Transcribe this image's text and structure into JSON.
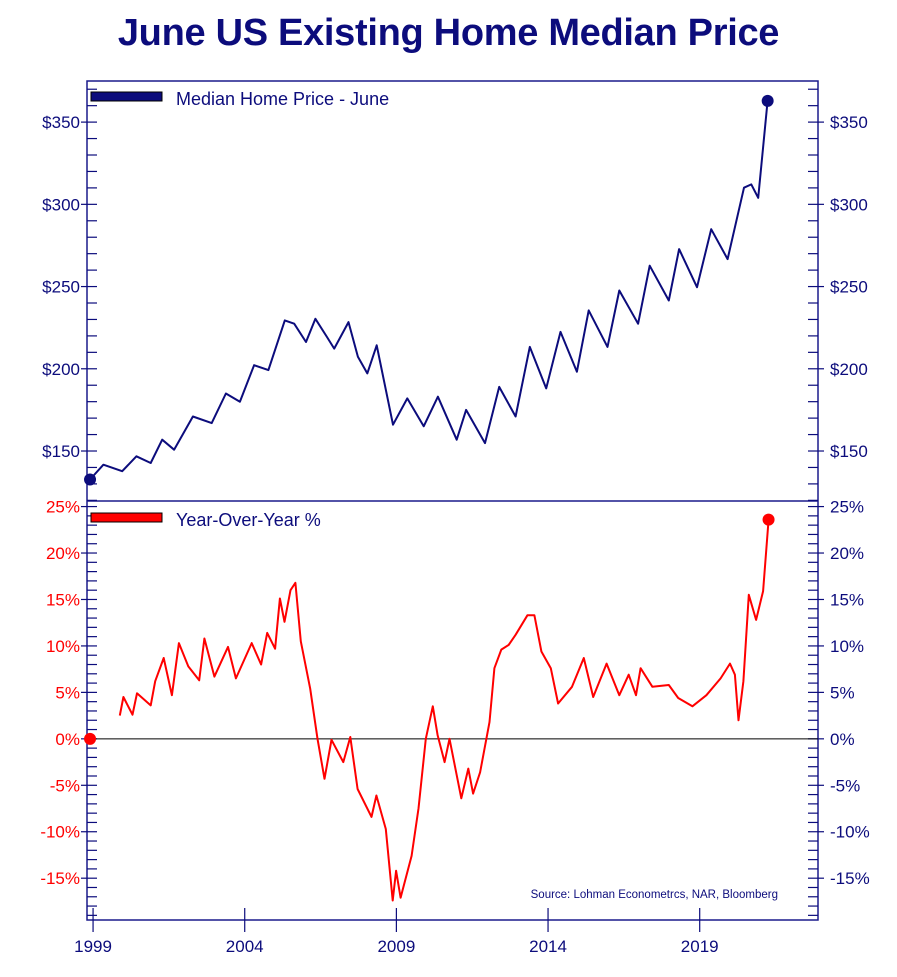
{
  "title": "June US Existing Home Median Price",
  "source": "Source: Lohman Econometrcs, NAR, Bloomberg",
  "colors": {
    "navy": "#0c0c7c",
    "red": "#ff0000",
    "zero_line": "#000000"
  },
  "chart_data": [
    {
      "type": "line",
      "legend": "Median Home Price - June",
      "legend_position": "top-left",
      "ylim": [
        119.6,
        375
      ],
      "yticks": [
        150,
        200,
        250,
        300,
        350
      ],
      "ytick_labels": [
        "$150",
        "$200",
        "$250",
        "$300",
        "$350"
      ],
      "color": "#0c0c7c",
      "x": [
        1998.9,
        1999.34,
        1999.96,
        2000.43,
        2000.9,
        2001.28,
        2001.67,
        2002.29,
        2002.91,
        2003.38,
        2003.84,
        2004.31,
        2004.78,
        2005.32,
        2005.63,
        2006.02,
        2006.33,
        2006.71,
        2006.95,
        2007.42,
        2007.73,
        2008.04,
        2008.35,
        2008.89,
        2009.36,
        2009.9,
        2010.37,
        2010.99,
        2011.3,
        2011.92,
        2012.39,
        2012.93,
        2013.4,
        2013.94,
        2014.41,
        2014.95,
        2015.34,
        2015.96,
        2016.35,
        2016.97,
        2017.35,
        2017.98,
        2018.32,
        2018.91,
        2019.38,
        2019.92,
        2020.46,
        2020.7,
        2020.93,
        2021.24
      ],
      "y": [
        132.7,
        141.7,
        137.7,
        146.8,
        142.7,
        156.9,
        150.8,
        171,
        167,
        185,
        180,
        202.2,
        199.2,
        229.4,
        227.4,
        216.3,
        230.4,
        219.4,
        212.3,
        228.4,
        207.3,
        197.2,
        214.3,
        166,
        182,
        165,
        183,
        156.9,
        175,
        154.8,
        189,
        171,
        213.3,
        188.1,
        222.4,
        198.2,
        235.5,
        213.3,
        247.6,
        227.4,
        262.7,
        241.5,
        272.8,
        249.6,
        284.9,
        266.7,
        310.1,
        312.1,
        304,
        362.9
      ]
    },
    {
      "type": "line",
      "legend": "Year-Over-Year %",
      "legend_position": "top-left",
      "ylim": [
        -19.5,
        25.6
      ],
      "yticks": [
        -15,
        -10,
        -5,
        0,
        5,
        10,
        15,
        20,
        25
      ],
      "ytick_labels": [
        "-15%",
        "-10%",
        "-5%",
        "0%",
        "5%",
        "10%",
        "15%",
        "20%",
        "25%"
      ],
      "color": "#ff0000",
      "x": [
        1998.9,
        1999.88,
        2000.0,
        2000.3,
        2000.45,
        2000.9,
        2001.05,
        2001.33,
        2001.6,
        2001.83,
        2002.14,
        2002.5,
        2002.67,
        2003.0,
        2003.45,
        2003.71,
        2004.23,
        2004.54,
        2004.74,
        2005.0,
        2005.16,
        2005.31,
        2005.51,
        2005.67,
        2005.85,
        2006.16,
        2006.4,
        2006.63,
        2006.86,
        2007.25,
        2007.48,
        2007.72,
        2008.18,
        2008.34,
        2008.65,
        2008.88,
        2008.99,
        2009.14,
        2009.5,
        2009.73,
        2009.97,
        2010.2,
        2010.36,
        2010.59,
        2010.75,
        2011.14,
        2011.37,
        2011.53,
        2011.76,
        2012.07,
        2012.23,
        2012.46,
        2012.7,
        2012.93,
        2013.32,
        2013.55,
        2013.78,
        2014.09,
        2014.33,
        2014.79,
        2015.18,
        2015.49,
        2015.93,
        2016.35,
        2016.66,
        2016.9,
        2017.05,
        2017.44,
        2017.98,
        2018.29,
        2018.76,
        2019.22,
        2019.69,
        2020.0,
        2020.16,
        2020.28,
        2020.44,
        2020.62,
        2020.86,
        2021.09,
        2021.27
      ],
      "y": [
        0,
        2.5,
        4.5,
        2.6,
        4.9,
        3.6,
        6.2,
        8.7,
        4.7,
        10.3,
        7.8,
        6.3,
        10.8,
        6.7,
        9.9,
        6.5,
        10.3,
        8.0,
        11.4,
        9.7,
        15.1,
        12.6,
        16.0,
        16.8,
        10.5,
        5.4,
        0,
        -4.3,
        -0.1,
        -2.5,
        0.2,
        -5.4,
        -8.4,
        -6.1,
        -9.7,
        -17.4,
        -14.2,
        -17.1,
        -12.6,
        -7.5,
        0,
        3.5,
        0.4,
        -2.5,
        0,
        -6.4,
        -3.2,
        -5.9,
        -3.6,
        1.8,
        7.6,
        9.6,
        10.1,
        11.2,
        13.3,
        13.3,
        9.4,
        7.6,
        3.8,
        5.6,
        8.7,
        4.5,
        8.1,
        4.7,
        6.9,
        4.7,
        7.6,
        5.6,
        5.8,
        4.4,
        3.5,
        4.7,
        6.5,
        8.1,
        6.9,
        2.0,
        6.2,
        15.5,
        12.8,
        15.9,
        23.6
      ]
    }
  ],
  "xaxis": {
    "xlim": [
      1998.8,
      2022.9
    ],
    "ticks": [
      1999,
      2004,
      2009,
      2014,
      2019
    ],
    "tick_labels": [
      "1999",
      "2004",
      "2009",
      "2014",
      "2019"
    ]
  }
}
